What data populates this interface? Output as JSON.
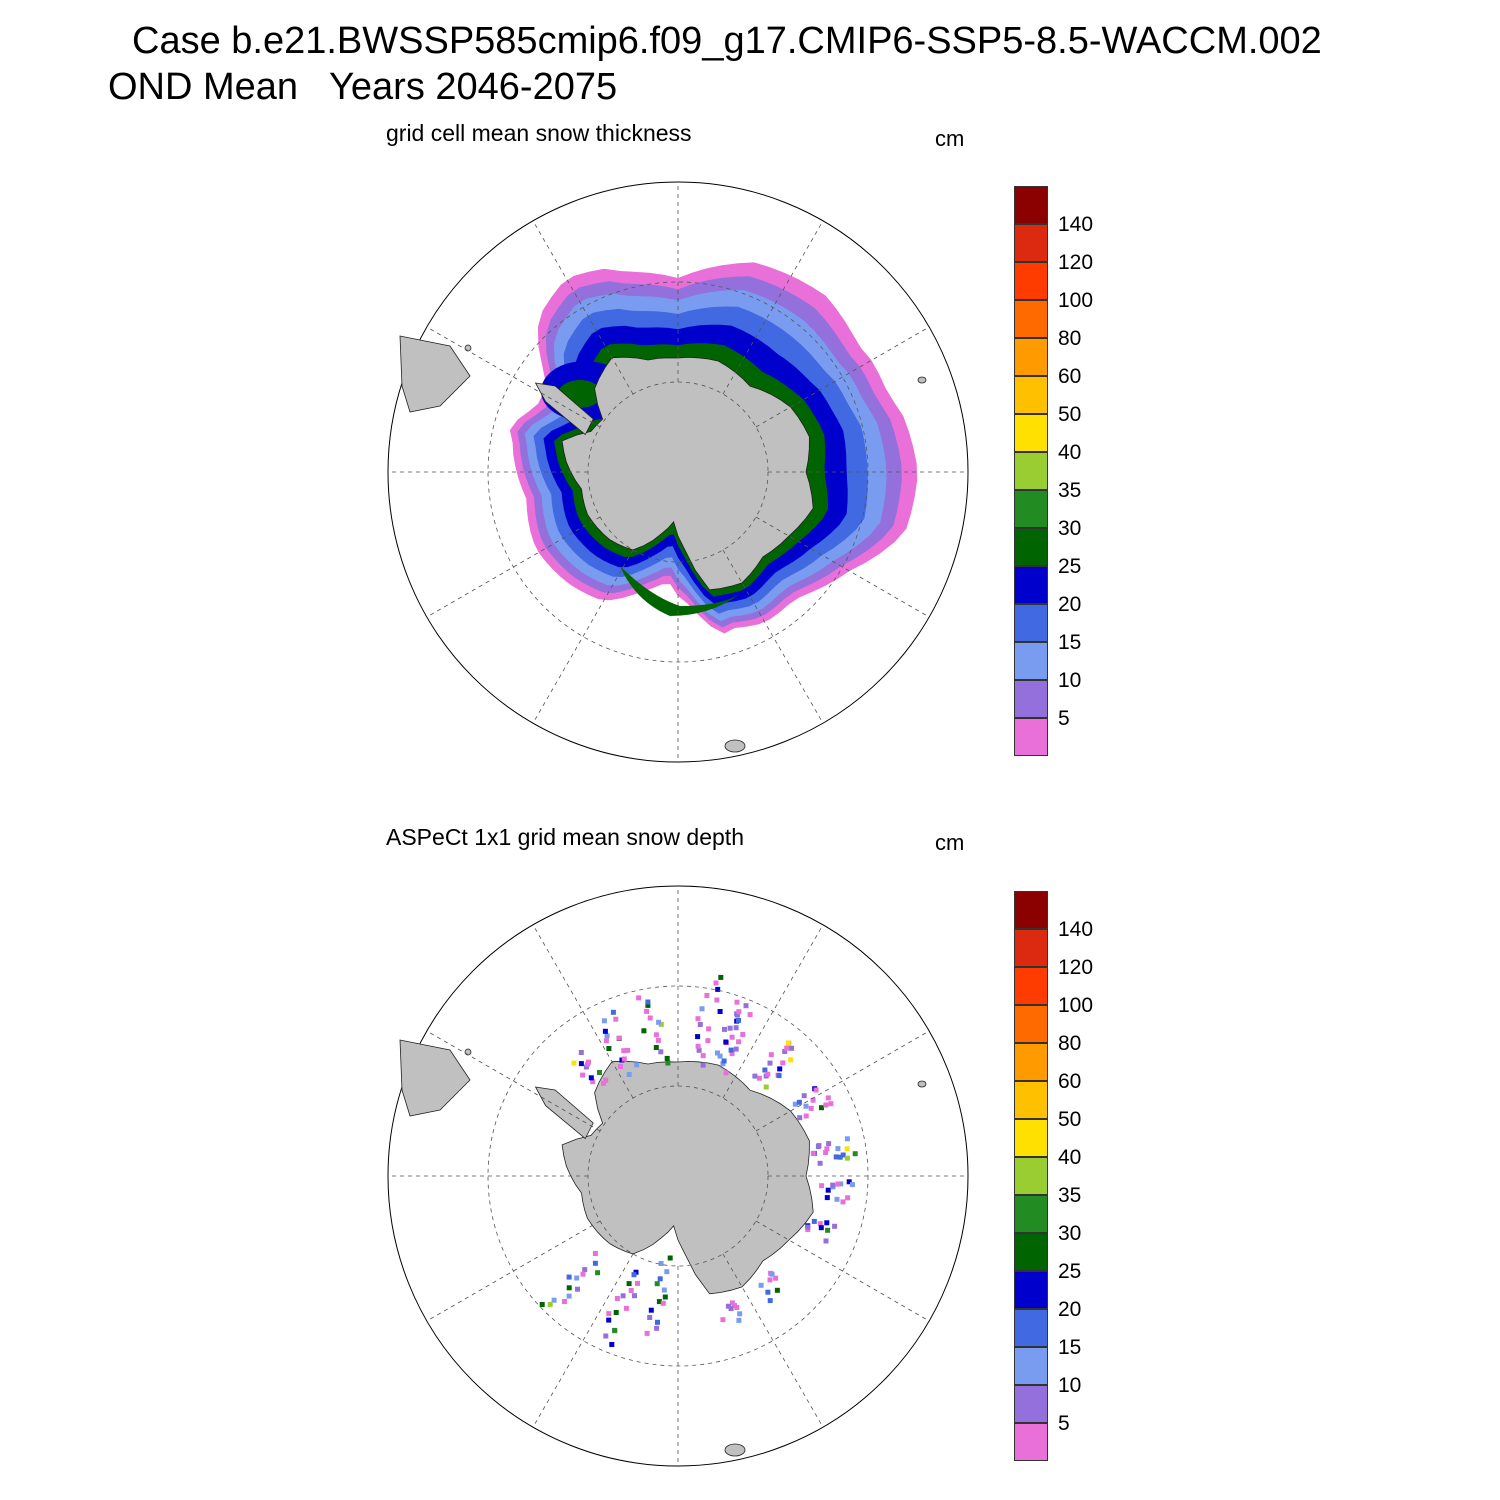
{
  "header": {
    "title_line1": "Case b.e21.BWSSP585cmip6.f09_g17.CMIP6-SSP5-8.5-WACCM.002",
    "title_line2": "OND Mean   Years 2046-2075"
  },
  "colors": {
    "land": "#c0c0c0",
    "ocean": "#ffffff",
    "grid": "#555555"
  },
  "colorbar": {
    "colors": [
      "#e870d8",
      "#9370db",
      "#7a9cf0",
      "#4169e1",
      "#0000cd",
      "#006400",
      "#228b22",
      "#9acd32",
      "#ffe000",
      "#ffc000",
      "#ff9a00",
      "#ff6a00",
      "#ff3c00",
      "#dc2a10",
      "#8b0000"
    ],
    "tick_labels": [
      "5",
      "10",
      "15",
      "20",
      "25",
      "30",
      "35",
      "40",
      "50",
      "60",
      "80",
      "100",
      "120",
      "140"
    ]
  },
  "panels": [
    {
      "title": "grid cell mean snow thickness",
      "units": "cm",
      "field": "model"
    },
    {
      "title": "ASPeCt 1x1 grid mean snow depth",
      "units": "cm",
      "field": "observations"
    }
  ]
}
